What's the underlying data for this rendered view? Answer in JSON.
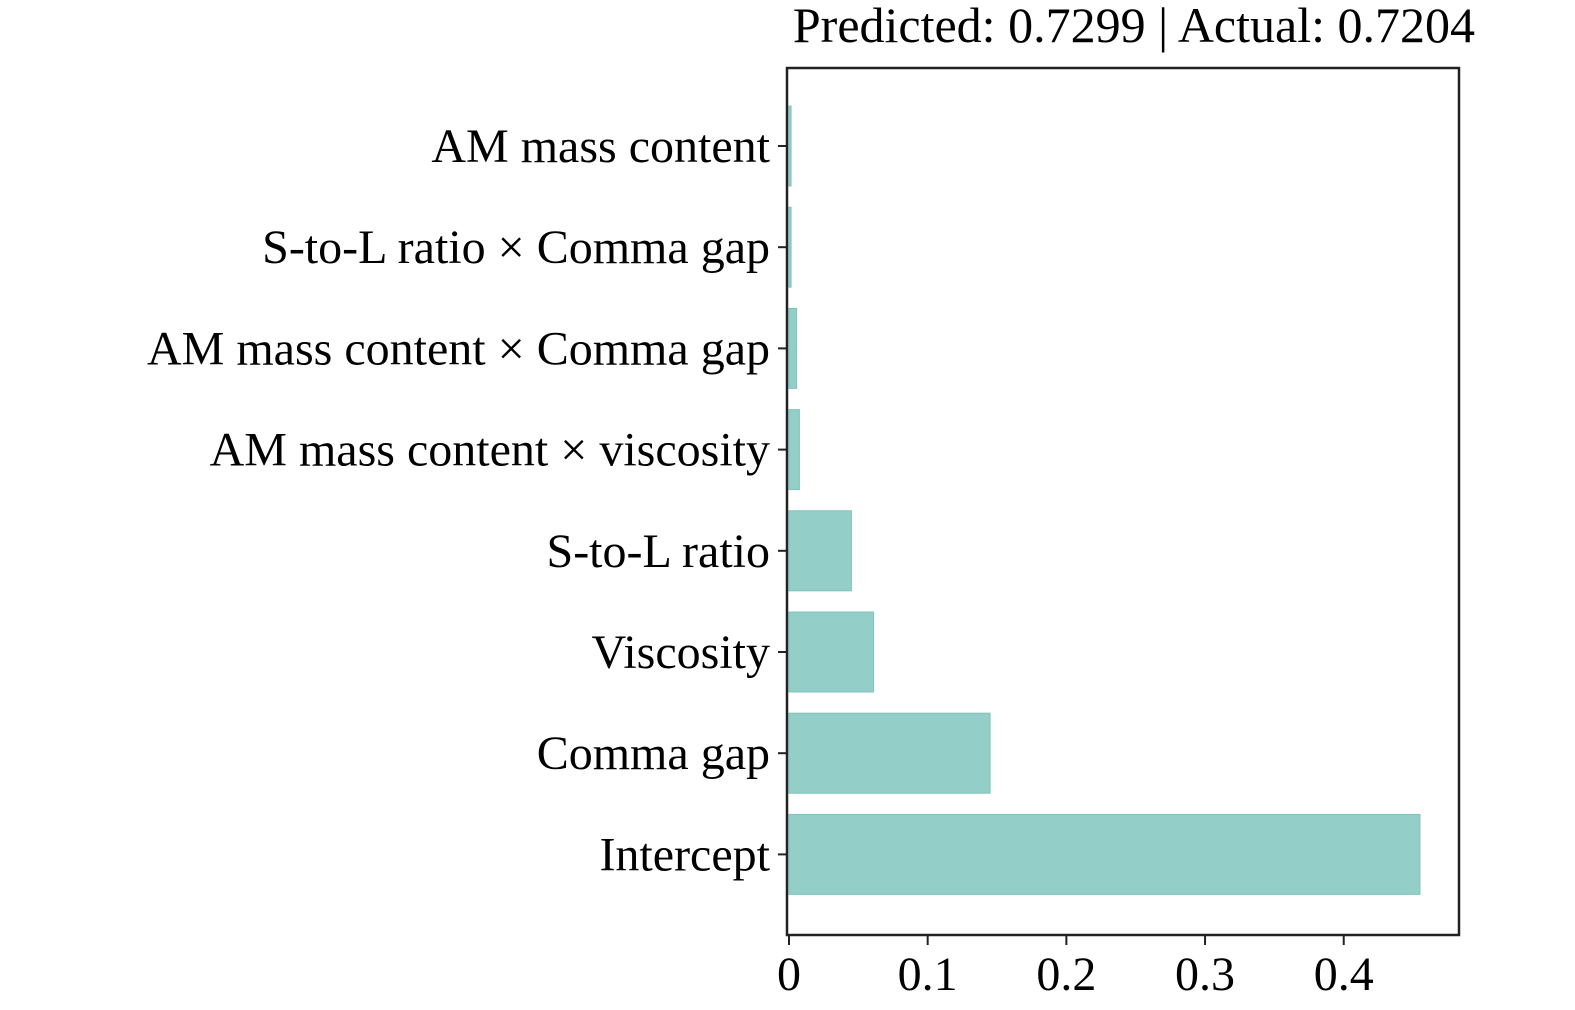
{
  "chart_data": {
    "type": "bar",
    "orientation": "horizontal",
    "title": "Predicted: 0.7299 | Actual: 0.7204",
    "xlabel": "",
    "ylabel": "",
    "categories": [
      "AM mass content",
      "S-to-L ratio × Comma gap",
      "AM mass content × Comma gap",
      "AM mass content × viscosity",
      "S-to-L ratio",
      "Viscosity",
      "Comma gap",
      "Intercept"
    ],
    "values": [
      0.0015,
      0.0015,
      0.0055,
      0.0075,
      0.045,
      0.061,
      0.145,
      0.455
    ],
    "xlim": [
      0,
      0.48
    ],
    "xticks": [
      0,
      0.1,
      0.2,
      0.3,
      0.4
    ],
    "xtick_labels": [
      "0",
      "0.1",
      "0.2",
      "0.3",
      "0.4"
    ],
    "grid": false,
    "bar_color": "#93cfc8",
    "bar_edge_color": "#7fc4bc"
  }
}
